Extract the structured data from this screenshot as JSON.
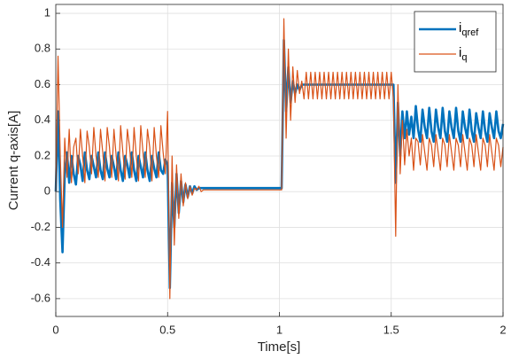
{
  "chart_data": {
    "type": "line",
    "xlabel": "Time[s]",
    "ylabel": "Current q-axis[A]",
    "x": [
      0,
      0.01,
      0.02,
      0.03,
      0.04,
      0.05,
      0.06,
      0.07,
      0.08,
      0.09,
      0.1,
      0.11,
      0.12,
      0.13,
      0.14,
      0.15,
      0.16,
      0.17,
      0.18,
      0.19,
      0.2,
      0.21,
      0.22,
      0.23,
      0.24,
      0.25,
      0.26,
      0.27,
      0.28,
      0.29,
      0.3,
      0.31,
      0.32,
      0.33,
      0.34,
      0.35,
      0.36,
      0.37,
      0.38,
      0.39,
      0.4,
      0.41,
      0.42,
      0.43,
      0.44,
      0.45,
      0.46,
      0.47,
      0.48,
      0.49,
      0.5,
      0.51,
      0.52,
      0.53,
      0.54,
      0.55,
      0.56,
      0.57,
      0.58,
      0.59,
      0.6,
      0.61,
      0.62,
      0.63,
      0.64,
      0.65,
      0.66,
      0.67,
      0.68,
      0.69,
      0.7,
      0.71,
      0.72,
      0.73,
      0.74,
      0.75,
      0.76,
      0.77,
      0.78,
      0.79,
      0.8,
      0.81,
      0.82,
      0.83,
      0.84,
      0.85,
      0.86,
      0.87,
      0.88,
      0.89,
      0.9,
      0.91,
      0.92,
      0.93,
      0.94,
      0.95,
      0.96,
      0.97,
      0.98,
      0.99,
      1,
      1.01,
      1.02,
      1.03,
      1.04,
      1.05,
      1.06,
      1.07,
      1.08,
      1.09,
      1.1,
      1.11,
      1.12,
      1.13,
      1.14,
      1.15,
      1.16,
      1.17,
      1.18,
      1.19,
      1.2,
      1.21,
      1.22,
      1.23,
      1.24,
      1.25,
      1.26,
      1.27,
      1.28,
      1.29,
      1.3,
      1.31,
      1.32,
      1.33,
      1.34,
      1.35,
      1.36,
      1.37,
      1.38,
      1.39,
      1.4,
      1.41,
      1.42,
      1.43,
      1.44,
      1.45,
      1.46,
      1.47,
      1.48,
      1.49,
      1.5,
      1.51,
      1.52,
      1.53,
      1.54,
      1.55,
      1.56,
      1.57,
      1.58,
      1.59,
      1.6,
      1.61,
      1.62,
      1.63,
      1.64,
      1.65,
      1.66,
      1.67,
      1.68,
      1.69,
      1.7,
      1.71,
      1.72,
      1.73,
      1.74,
      1.75,
      1.76,
      1.77,
      1.78,
      1.79,
      1.8,
      1.81,
      1.82,
      1.83,
      1.84,
      1.85,
      1.86,
      1.87,
      1.88,
      1.89,
      1.9,
      1.91,
      1.92,
      1.93,
      1.94,
      1.95,
      1.96,
      1.97,
      1.98,
      1.99,
      2
    ],
    "series": [
      {
        "name": "iqref",
        "color": "#0072BD",
        "width": 2.6,
        "values": [
          0,
          0.45,
          -0.05,
          -0.34,
          0.1,
          0.22,
          0.05,
          0.2,
          0.1,
          0.04,
          0.2,
          0.15,
          0.06,
          0.22,
          0.12,
          0.07,
          0.2,
          0.14,
          0.08,
          0.22,
          0.12,
          0.07,
          0.22,
          0.13,
          0.08,
          0.2,
          0.14,
          0.07,
          0.22,
          0.12,
          0.06,
          0.2,
          0.15,
          0.08,
          0.22,
          0.12,
          0.06,
          0.2,
          0.14,
          0.08,
          0.22,
          0.12,
          0.06,
          0.2,
          0.13,
          0.08,
          0.22,
          0.12,
          0.1,
          0.18,
          0.15,
          -0.54,
          0.05,
          -0.2,
          0.1,
          -0.12,
          0.06,
          -0.06,
          0.04,
          -0.03,
          0.03,
          -0.01,
          0.03,
          0.01,
          0.02,
          0.02,
          0.02,
          0.02,
          0.02,
          0.02,
          0.02,
          0.02,
          0.02,
          0.02,
          0.02,
          0.02,
          0.02,
          0.02,
          0.02,
          0.02,
          0.02,
          0.02,
          0.02,
          0.02,
          0.02,
          0.02,
          0.02,
          0.02,
          0.02,
          0.02,
          0.02,
          0.02,
          0.02,
          0.02,
          0.02,
          0.02,
          0.02,
          0.02,
          0.02,
          0.02,
          0.02,
          0.02,
          0.85,
          0.45,
          0.7,
          0.5,
          0.62,
          0.55,
          0.6,
          0.57,
          0.6,
          0.6,
          0.6,
          0.6,
          0.6,
          0.6,
          0.6,
          0.6,
          0.6,
          0.6,
          0.6,
          0.6,
          0.6,
          0.6,
          0.6,
          0.6,
          0.6,
          0.6,
          0.6,
          0.6,
          0.6,
          0.6,
          0.6,
          0.6,
          0.6,
          0.6,
          0.6,
          0.6,
          0.6,
          0.6,
          0.6,
          0.6,
          0.6,
          0.6,
          0.6,
          0.6,
          0.6,
          0.6,
          0.6,
          0.6,
          0.6,
          0.6,
          0.05,
          0.5,
          0.2,
          0.45,
          0.3,
          0.45,
          0.32,
          0.42,
          0.3,
          0.48,
          0.35,
          0.28,
          0.46,
          0.36,
          0.3,
          0.47,
          0.34,
          0.28,
          0.46,
          0.36,
          0.3,
          0.47,
          0.34,
          0.28,
          0.45,
          0.36,
          0.3,
          0.47,
          0.34,
          0.28,
          0.45,
          0.36,
          0.3,
          0.46,
          0.34,
          0.28,
          0.44,
          0.36,
          0.3,
          0.45,
          0.34,
          0.28,
          0.44,
          0.36,
          0.3,
          0.45,
          0.34,
          0.3,
          0.38
        ]
      },
      {
        "name": "iq",
        "color": "#D95319",
        "width": 1.2,
        "values": [
          0,
          0.76,
          0.2,
          -0.2,
          0.3,
          0.08,
          0.35,
          0.05,
          0.25,
          0.3,
          0.1,
          0.35,
          0.2,
          0.05,
          0.34,
          0.25,
          0.1,
          0.36,
          0.2,
          0.08,
          0.35,
          0.22,
          0.06,
          0.36,
          0.25,
          0.08,
          0.35,
          0.2,
          0.06,
          0.37,
          0.22,
          0.07,
          0.35,
          0.25,
          0.08,
          0.36,
          0.2,
          0.06,
          0.37,
          0.22,
          0.08,
          0.35,
          0.25,
          0.06,
          0.36,
          0.2,
          0.08,
          0.37,
          0.22,
          0.1,
          0.45,
          -0.6,
          0.2,
          -0.3,
          0.15,
          -0.15,
          0.1,
          -0.08,
          0.05,
          -0.04,
          0.03,
          -0.02,
          0.02,
          0.01,
          0.03,
          0,
          0.01,
          0.01,
          0.01,
          0.01,
          0.01,
          0.01,
          0.01,
          0.01,
          0.01,
          0.01,
          0.01,
          0.01,
          0.01,
          0.01,
          0.01,
          0.01,
          0.01,
          0.01,
          0.01,
          0.01,
          0.01,
          0.01,
          0.01,
          0.01,
          0.01,
          0.01,
          0.01,
          0.01,
          0.01,
          0.01,
          0.01,
          0.01,
          0.01,
          0.01,
          0.01,
          0.01,
          0.97,
          0.3,
          0.8,
          0.4,
          0.7,
          0.5,
          0.68,
          0.55,
          0.62,
          0.52,
          0.67,
          0.52,
          0.67,
          0.52,
          0.67,
          0.52,
          0.67,
          0.52,
          0.67,
          0.52,
          0.67,
          0.52,
          0.67,
          0.52,
          0.67,
          0.52,
          0.67,
          0.52,
          0.67,
          0.52,
          0.67,
          0.52,
          0.67,
          0.52,
          0.67,
          0.52,
          0.67,
          0.52,
          0.67,
          0.52,
          0.67,
          0.52,
          0.67,
          0.52,
          0.67,
          0.52,
          0.67,
          0.52,
          0.67,
          0.52,
          -0.25,
          0.6,
          0.1,
          0.4,
          0.15,
          0.35,
          0.2,
          0.3,
          0.12,
          0.3,
          0.28,
          0.15,
          0.32,
          0.22,
          0.12,
          0.3,
          0.26,
          0.14,
          0.32,
          0.22,
          0.12,
          0.3,
          0.26,
          0.14,
          0.32,
          0.22,
          0.12,
          0.3,
          0.26,
          0.14,
          0.32,
          0.22,
          0.12,
          0.3,
          0.26,
          0.14,
          0.32,
          0.22,
          0.12,
          0.3,
          0.26,
          0.14,
          0.32,
          0.22,
          0.12,
          0.3,
          0.26,
          0.14,
          0.25
        ]
      }
    ],
    "xlim": [
      0,
      2
    ],
    "xticks": [
      0,
      0.5,
      1,
      1.5,
      2
    ],
    "ylim": [
      -0.7,
      1.05
    ],
    "yticks": [
      -0.6,
      -0.4,
      -0.2,
      0,
      0.2,
      0.4,
      0.6,
      0.8,
      1
    ],
    "grid": true,
    "legend": "northeast"
  }
}
